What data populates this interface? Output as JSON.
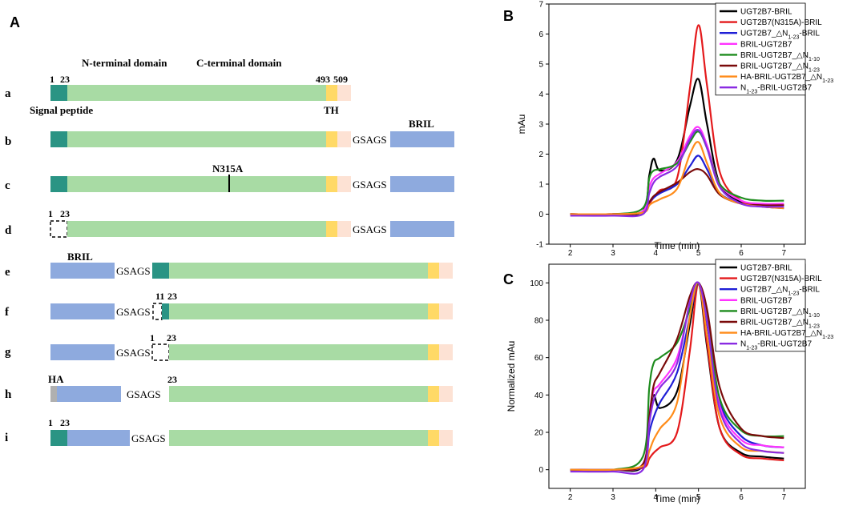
{
  "panel_labels": {
    "A": "A",
    "B": "B",
    "C": "C"
  },
  "colors": {
    "signal": "#2a9484",
    "ntd": "#a8dba4",
    "th": "#ffd966",
    "tail": "#fde2d4",
    "bril": "#8eaade",
    "ha": "#b0b0b0",
    "gap_border": "#000000"
  },
  "constructs": {
    "header": {
      "n_domain": "N-terminal domain",
      "c_domain": "C-terminal domain",
      "signal_peptide": "Signal peptide",
      "th": "TH",
      "pos_1": "1",
      "pos_23": "23",
      "pos_493": "493",
      "pos_509": "509"
    },
    "rows": [
      {
        "letter": "a",
        "linker": "",
        "tag": "",
        "top_left": "",
        "top_right": ""
      },
      {
        "letter": "b",
        "linker": "GSAGS",
        "tag": "BRIL",
        "top_left": "",
        "top_right": ""
      },
      {
        "letter": "c",
        "linker": "GSAGS",
        "tag": "",
        "mutation": "N315A",
        "top_left": "",
        "top_right": ""
      },
      {
        "letter": "d",
        "linker": "GSAGS",
        "tag": "",
        "top_left": "1",
        "top_right": "23"
      },
      {
        "letter": "e",
        "linker": "GSAGS",
        "tag": "BRIL",
        "top_left": "",
        "top_right": ""
      },
      {
        "letter": "f",
        "linker": "GSAGS",
        "tag": "",
        "top_left": "11",
        "top_right": "23"
      },
      {
        "letter": "g",
        "linker": "GSAGS",
        "tag": "",
        "top_left": "1",
        "top_right": "23"
      },
      {
        "letter": "h",
        "linker": "GSAGS",
        "tag": "HA",
        "top_left": "",
        "top_right": "23"
      },
      {
        "letter": "i",
        "linker": "GSAGS",
        "tag": "",
        "top_left": "1",
        "top_right": "23"
      }
    ]
  },
  "legend_entries": [
    {
      "label": "UGT2B7-BRIL",
      "color": "#000000"
    },
    {
      "label": "UGT2B7(N315A)-BRIL",
      "color": "#e41a1c"
    },
    {
      "label": "UGT2B7_△N1-23-BRIL",
      "color": "#1f1fd6"
    },
    {
      "label": "BRIL-UGT2B7",
      "color": "#ff33ff"
    },
    {
      "label": "BRIL-UGT2B7_△N1-10",
      "color": "#1e8c1e"
    },
    {
      "label": "BRIL-UGT2B7_△N1-23",
      "color": "#7a0a0a"
    },
    {
      "label": "HA-BRIL-UGT2B7_△N1-23",
      "color": "#ff8c1a"
    },
    {
      "label": "N1-23-BRIL-UGT2B7",
      "color": "#8a2be2"
    }
  ],
  "chart_data": [
    {
      "type": "line",
      "title": "",
      "panel": "B",
      "xlabel": "Time (min)",
      "ylabel": "mAu",
      "xlim": [
        1.5,
        7.5
      ],
      "ylim": [
        -1,
        7
      ],
      "xticks": [
        2,
        3,
        4,
        5,
        6,
        7
      ],
      "yticks": [
        -1,
        0,
        1,
        2,
        3,
        4,
        5,
        6,
        7
      ],
      "x": [
        2.0,
        3.0,
        3.7,
        3.85,
        3.95,
        4.1,
        4.5,
        4.8,
        5.0,
        5.2,
        5.5,
        6.0,
        6.5,
        7.0
      ],
      "series": [
        {
          "name": "UGT2B7-BRIL",
          "values": [
            0.0,
            0.0,
            0.1,
            1.3,
            1.85,
            1.45,
            1.8,
            3.6,
            4.5,
            3.0,
            1.0,
            0.4,
            0.3,
            0.3
          ]
        },
        {
          "name": "UGT2B7(N315A)-BRIL",
          "values": [
            0.0,
            0.0,
            0.05,
            0.35,
            0.55,
            0.8,
            1.2,
            4.2,
            6.3,
            4.3,
            1.4,
            0.45,
            0.3,
            0.3
          ]
        },
        {
          "name": "UGT2B7_△N1-23-BRIL",
          "values": [
            0.0,
            0.0,
            0.05,
            0.4,
            0.55,
            0.7,
            1.0,
            1.6,
            1.95,
            1.5,
            0.7,
            0.35,
            0.25,
            0.2
          ]
        },
        {
          "name": "BRIL-UGT2B7",
          "values": [
            0.0,
            0.0,
            0.1,
            0.9,
            1.2,
            1.35,
            1.75,
            2.6,
            2.9,
            2.3,
            1.0,
            0.45,
            0.35,
            0.35
          ]
        },
        {
          "name": "BRIL-UGT2B7_△N1-10",
          "values": [
            0.0,
            0.0,
            0.2,
            1.2,
            1.45,
            1.5,
            1.7,
            2.4,
            2.75,
            2.2,
            1.0,
            0.55,
            0.45,
            0.45
          ]
        },
        {
          "name": "BRIL-UGT2B7_△N1-23",
          "values": [
            0.0,
            0.0,
            0.05,
            0.4,
            0.6,
            0.75,
            1.05,
            1.4,
            1.5,
            1.3,
            0.65,
            0.35,
            0.3,
            0.3
          ]
        },
        {
          "name": "HA-BRIL-UGT2B7_△N1-23",
          "values": [
            0.0,
            0.0,
            0.05,
            0.3,
            0.4,
            0.5,
            0.85,
            2.0,
            2.4,
            1.7,
            0.7,
            0.35,
            0.25,
            0.2
          ]
        },
        {
          "name": "N1-23-BRIL-UGT2B7",
          "values": [
            -0.05,
            -0.05,
            0.0,
            0.7,
            1.05,
            1.25,
            1.6,
            2.5,
            2.8,
            2.2,
            0.9,
            0.35,
            0.25,
            0.25
          ]
        }
      ]
    },
    {
      "type": "line",
      "title": "",
      "panel": "C",
      "xlabel": "Time (min)",
      "ylabel": "Normalized mAu",
      "xlim": [
        1.5,
        7.5
      ],
      "ylim": [
        -10,
        110
      ],
      "xticks": [
        2,
        3,
        4,
        5,
        6,
        7
      ],
      "yticks": [
        0,
        20,
        40,
        60,
        80,
        100
      ],
      "x": [
        2.0,
        3.0,
        3.7,
        3.85,
        3.95,
        4.1,
        4.5,
        4.8,
        5.0,
        5.2,
        5.5,
        6.0,
        6.5,
        7.0
      ],
      "series": [
        {
          "name": "UGT2B7-BRIL",
          "values": [
            0,
            0,
            2,
            28,
            40,
            33,
            42,
            78,
            100,
            66,
            22,
            9,
            7,
            6
          ]
        },
        {
          "name": "UGT2B7(N315A)-BRIL",
          "values": [
            0,
            0,
            1,
            6,
            9,
            12,
            20,
            64,
            100,
            68,
            22,
            8,
            6,
            5
          ]
        },
        {
          "name": "UGT2B7_△N1-23-BRIL",
          "values": [
            0,
            0,
            2,
            20,
            28,
            36,
            52,
            82,
            100,
            78,
            36,
            18,
            13,
            12
          ]
        },
        {
          "name": "BRIL-UGT2B7",
          "values": [
            0,
            0,
            3,
            30,
            42,
            46,
            60,
            88,
            100,
            80,
            34,
            16,
            13,
            12
          ]
        },
        {
          "name": "BRIL-UGT2B7_△N1-10",
          "values": [
            0,
            0,
            7,
            44,
            57,
            60,
            68,
            86,
            100,
            82,
            38,
            21,
            18,
            18
          ]
        },
        {
          "name": "BRIL-UGT2B7_△N1-23",
          "values": [
            0,
            0,
            3,
            28,
            45,
            52,
            70,
            93,
            100,
            86,
            44,
            22,
            18,
            17
          ]
        },
        {
          "name": "HA-BRIL-UGT2B7_△N1-23",
          "values": [
            0,
            0,
            2,
            10,
            16,
            22,
            36,
            82,
            100,
            72,
            28,
            12,
            10,
            9
          ]
        },
        {
          "name": "N1-23-BRIL-UGT2B7",
          "values": [
            -1,
            -1,
            0,
            25,
            37,
            44,
            57,
            90,
            100,
            80,
            32,
            14,
            10,
            9
          ]
        }
      ]
    }
  ]
}
